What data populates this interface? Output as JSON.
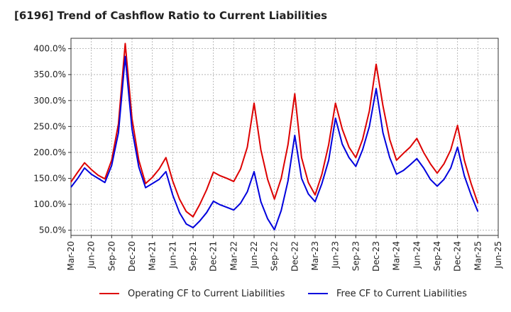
{
  "title": "[6196]  Trend of Cashflow Ratio to Current Liabilities",
  "colors": {
    "operating": "#dd0000",
    "free": "#0000dd",
    "grid": "#aaaaaa",
    "axis": "#333333"
  },
  "chart_data": {
    "type": "line",
    "title": "[6196]  Trend of Cashflow Ratio to Current Liabilities",
    "xlabel": "",
    "ylabel": "",
    "grid": true,
    "legend_position": "bottom",
    "x_tick_labels": [
      "Mar-20",
      "Jun-20",
      "Sep-20",
      "Dec-20",
      "Mar-21",
      "Jun-21",
      "Sep-21",
      "Dec-21",
      "Mar-22",
      "Jun-22",
      "Sep-22",
      "Dec-22",
      "Mar-23",
      "Jun-23",
      "Sep-23",
      "Dec-23",
      "Mar-24",
      "Jun-24",
      "Sep-24",
      "Dec-24",
      "Mar-25",
      "Jun-25"
    ],
    "y_tick_labels": [
      "50.0%",
      "100.0%",
      "150.0%",
      "200.0%",
      "250.0%",
      "300.0%",
      "350.0%",
      "400.0%"
    ],
    "y_ticks": [
      50,
      100,
      150,
      200,
      250,
      300,
      350,
      400
    ],
    "ylim": [
      40,
      420
    ],
    "x": [
      "Mar-20",
      "Apr-20",
      "May-20",
      "Jun-20",
      "Jul-20",
      "Aug-20",
      "Sep-20",
      "Oct-20",
      "Nov-20",
      "Dec-20",
      "Jan-21",
      "Feb-21",
      "Mar-21",
      "Apr-21",
      "May-21",
      "Jun-21",
      "Jul-21",
      "Aug-21",
      "Sep-21",
      "Oct-21",
      "Nov-21",
      "Dec-21",
      "Jan-22",
      "Feb-22",
      "Mar-22",
      "Apr-22",
      "May-22",
      "Jun-22",
      "Jul-22",
      "Aug-22",
      "Sep-22",
      "Oct-22",
      "Nov-22",
      "Dec-22",
      "Jan-23",
      "Feb-23",
      "Mar-23",
      "Apr-23",
      "May-23",
      "Jun-23",
      "Jul-23",
      "Aug-23",
      "Sep-23",
      "Oct-23",
      "Nov-23",
      "Dec-23",
      "Jan-24",
      "Feb-24",
      "Mar-24",
      "Apr-24",
      "May-24",
      "Jun-24",
      "Jul-24",
      "Aug-24",
      "Sep-24",
      "Oct-24",
      "Nov-24",
      "Dec-24",
      "Jan-25",
      "Feb-25",
      "Mar-25"
    ],
    "series": [
      {
        "name": "Operating CF to Current Liabilities",
        "color": "#dd0000",
        "values": [
          143,
          162,
          180,
          167,
          156,
          149,
          185,
          255,
          410,
          265,
          185,
          140,
          152,
          168,
          190,
          145,
          110,
          86,
          76,
          100,
          128,
          162,
          155,
          150,
          144,
          168,
          210,
          295,
          205,
          148,
          110,
          150,
          215,
          313,
          190,
          142,
          118,
          158,
          215,
          295,
          245,
          210,
          190,
          225,
          280,
          370,
          290,
          225,
          185,
          198,
          210,
          227,
          200,
          178,
          160,
          178,
          205,
          252,
          185,
          140,
          102
        ]
      },
      {
        "name": "Free CF to Current Liabilities",
        "color": "#0000dd",
        "values": [
          133,
          150,
          170,
          158,
          150,
          142,
          175,
          238,
          385,
          245,
          172,
          132,
          140,
          148,
          163,
          118,
          84,
          62,
          55,
          68,
          84,
          106,
          99,
          94,
          89,
          102,
          124,
          163,
          105,
          72,
          51,
          88,
          145,
          233,
          150,
          120,
          105,
          140,
          185,
          266,
          216,
          190,
          173,
          205,
          250,
          323,
          238,
          190,
          158,
          165,
          176,
          188,
          170,
          148,
          135,
          148,
          170,
          210,
          155,
          118,
          86
        ]
      }
    ]
  },
  "legend": {
    "operating_label": "Operating CF to Current Liabilities",
    "free_label": "Free CF to Current Liabilities"
  }
}
